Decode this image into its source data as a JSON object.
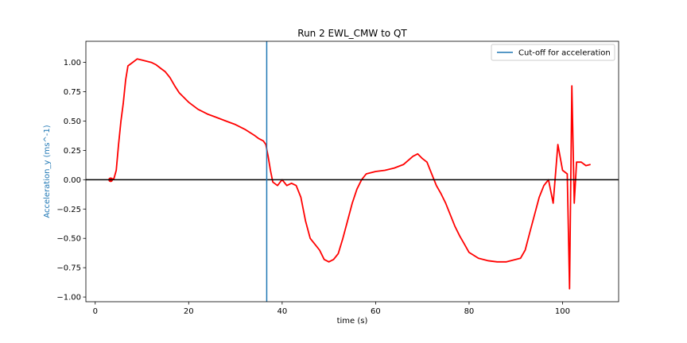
{
  "chart_data": {
    "type": "line",
    "title": "Run 2 EWL_CMW to QT",
    "xlabel": "time (s)",
    "ylabel": "Acceleration_y (ms^-1)",
    "xlim": [
      -2,
      112
    ],
    "ylim": [
      -1.04,
      1.18
    ],
    "xticks": [
      0,
      20,
      40,
      60,
      80,
      100
    ],
    "xtick_labels": [
      "0",
      "20",
      "40",
      "60",
      "80",
      "100"
    ],
    "yticks": [
      -1.0,
      -0.75,
      -0.5,
      -0.25,
      0.0,
      0.25,
      0.5,
      0.75,
      1.0
    ],
    "ytick_labels": [
      "−1.00",
      "−0.75",
      "−0.50",
      "−0.25",
      "0.00",
      "0.25",
      "0.50",
      "0.75",
      "1.00"
    ],
    "grid": false,
    "legend_position": "top-right",
    "colors": {
      "series": "#ff0000",
      "cutoff": "#1f77b4",
      "zero_line": "#000000",
      "ylabel": "#1f77b4"
    },
    "series": [
      {
        "color": "#ff0000",
        "x": [
          3.3,
          4.0,
          4.5,
          5.0,
          5.5,
          6.0,
          6.5,
          7.0,
          8.0,
          9.0,
          10.0,
          11.0,
          12.0,
          13.0,
          14.0,
          15.0,
          16.0,
          17.0,
          18.0,
          19.0,
          20.0,
          22.0,
          24.0,
          26.0,
          28.0,
          30.0,
          32.0,
          34.0,
          35.0,
          36.0,
          36.5,
          37.0,
          37.5,
          38.0,
          39.0,
          40.0,
          41.0,
          42.0,
          43.0,
          44.0,
          45.0,
          46.0,
          47.0,
          48.0,
          49.0,
          50.0,
          51.0,
          52.0,
          53.0,
          54.0,
          55.0,
          56.0,
          57.0,
          58.0,
          59.0,
          60.0,
          62.0,
          64.0,
          66.0,
          68.0,
          69.0,
          70.0,
          71.0,
          72.0,
          73.0,
          74.0,
          75.0,
          76.0,
          77.0,
          78.0,
          79.0,
          80.0,
          82.0,
          84.0,
          86.0,
          88.0,
          90.0,
          91.0,
          92.0,
          93.0,
          94.0,
          95.0,
          96.0,
          97.0,
          98.0,
          99.0,
          100.0,
          101.0,
          101.5,
          102.0,
          102.5,
          103.0,
          104.0,
          105.0,
          106.0
        ],
        "y": [
          0.0,
          0.01,
          0.08,
          0.3,
          0.5,
          0.65,
          0.85,
          0.97,
          1.0,
          1.03,
          1.02,
          1.01,
          1.0,
          0.98,
          0.95,
          0.92,
          0.87,
          0.8,
          0.74,
          0.7,
          0.66,
          0.6,
          0.56,
          0.53,
          0.5,
          0.47,
          0.43,
          0.38,
          0.35,
          0.33,
          0.3,
          0.2,
          0.08,
          -0.02,
          -0.05,
          0.0,
          -0.05,
          -0.03,
          -0.05,
          -0.15,
          -0.35,
          -0.5,
          -0.55,
          -0.6,
          -0.68,
          -0.7,
          -0.68,
          -0.63,
          -0.5,
          -0.35,
          -0.2,
          -0.08,
          0.0,
          0.05,
          0.06,
          0.07,
          0.08,
          0.1,
          0.13,
          0.2,
          0.22,
          0.18,
          0.15,
          0.05,
          -0.05,
          -0.12,
          -0.2,
          -0.3,
          -0.4,
          -0.48,
          -0.55,
          -0.62,
          -0.67,
          -0.69,
          -0.7,
          -0.7,
          -0.68,
          -0.67,
          -0.6,
          -0.45,
          -0.3,
          -0.15,
          -0.05,
          0.0,
          -0.2,
          0.3,
          0.08,
          0.05,
          -0.93,
          0.8,
          -0.2,
          0.15,
          0.15,
          0.12,
          0.13
        ]
      }
    ],
    "cutoff": {
      "x": 36.7,
      "label": "Cut-off for acceleration"
    },
    "hline": {
      "y": 0.0
    }
  }
}
